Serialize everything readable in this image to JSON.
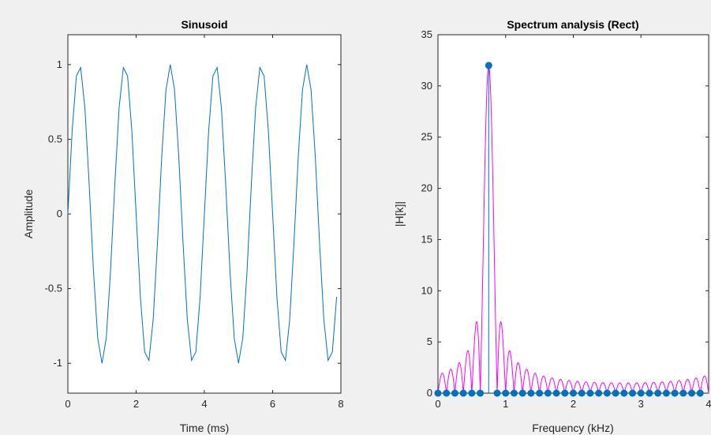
{
  "chart_data": [
    {
      "type": "line",
      "title": "Sinusoid",
      "xlabel": "Time (ms)",
      "ylabel": "Amplitude",
      "xlim": [
        0,
        8
      ],
      "ylim": [
        -1.2,
        1.2
      ],
      "xticks": [
        0,
        2,
        4,
        6,
        8
      ],
      "xtick_labels": [
        "0",
        "2",
        "4",
        "6",
        "8"
      ],
      "yticks": [
        -1,
        -0.5,
        0,
        0.5,
        1
      ],
      "ytick_labels": [
        "-1",
        "-0.5",
        "0",
        "0.5",
        "1"
      ],
      "series": [
        {
          "frequency_khz": 0.75,
          "sample_step_ms": 0.125,
          "x_range": [
            0,
            7.875
          ],
          "color": "#0072bd"
        }
      ],
      "grid": false
    },
    {
      "type": "stem+line",
      "title": "Spectrum analysis (Rect)",
      "xlabel": "Frequency (kHz)",
      "ylabel": "|H[k]|",
      "xlim": [
        0,
        4
      ],
      "ylim": [
        0,
        35
      ],
      "xticks": [
        0,
        1,
        2,
        3,
        4
      ],
      "xtick_labels": [
        "0",
        "1",
        "2",
        "3",
        "4"
      ],
      "yticks": [
        0,
        5,
        10,
        15,
        20,
        25,
        30,
        35
      ],
      "ytick_labels": [
        "0",
        "5",
        "10",
        "15",
        "20",
        "25",
        "30",
        "35"
      ],
      "stem": {
        "x": [
          0,
          0.125,
          0.25,
          0.375,
          0.5,
          0.625,
          0.75,
          0.875,
          1,
          1.125,
          1.25,
          1.375,
          1.5,
          1.625,
          1.75,
          1.875,
          2,
          2.125,
          2.25,
          2.375,
          2.5,
          2.625,
          2.75,
          2.875,
          3,
          3.125,
          3.25,
          3.375,
          3.5,
          3.625,
          3.75,
          3.875
        ],
        "y": [
          0,
          0,
          0,
          0,
          0,
          0,
          32,
          0,
          0,
          0,
          0,
          0,
          0,
          0,
          0,
          0,
          0,
          0,
          0,
          0,
          0,
          0,
          0,
          0,
          0,
          0,
          0,
          0,
          0,
          0,
          0,
          0
        ],
        "color": "#0072bd"
      },
      "continuous": {
        "peak": 32,
        "center_khz": 0.75,
        "bin_khz": 0.125,
        "x_range": [
          0,
          4
        ],
        "color": "#ff00ff"
      },
      "grid": false
    }
  ]
}
